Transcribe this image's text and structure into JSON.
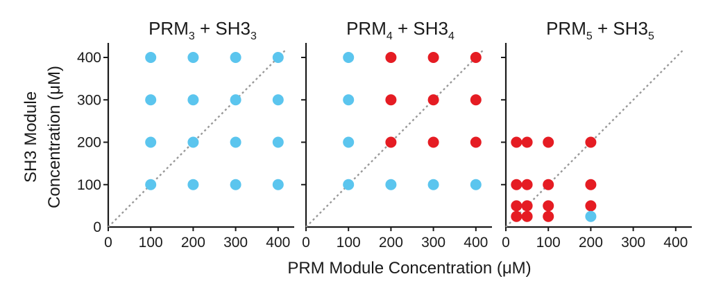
{
  "chart_data": {
    "type": "scatter",
    "ylabel": [
      "SH3 Module",
      "Concentration (μM)"
    ],
    "xlabel": "PRM Module Concentration (μM)",
    "xlim": [
      0,
      420
    ],
    "ylim": [
      0,
      420
    ],
    "x_ticks": [
      "0",
      "100",
      "200",
      "300",
      "400"
    ],
    "y_ticks": [
      "0",
      "100",
      "200",
      "300",
      "400"
    ],
    "colors": {
      "blue": "#5BC5EE",
      "red": "#E51C23",
      "diagonal": "#999999"
    },
    "panels": [
      {
        "title": {
          "prefix1": "PRM",
          "sub1": "3",
          "mid": " + SH3",
          "sub2": "3"
        },
        "points": [
          {
            "x": 100,
            "y": 400,
            "c": "blue"
          },
          {
            "x": 200,
            "y": 400,
            "c": "blue"
          },
          {
            "x": 300,
            "y": 400,
            "c": "blue"
          },
          {
            "x": 400,
            "y": 400,
            "c": "blue"
          },
          {
            "x": 100,
            "y": 300,
            "c": "blue"
          },
          {
            "x": 200,
            "y": 300,
            "c": "blue"
          },
          {
            "x": 300,
            "y": 300,
            "c": "blue"
          },
          {
            "x": 400,
            "y": 300,
            "c": "blue"
          },
          {
            "x": 100,
            "y": 200,
            "c": "blue"
          },
          {
            "x": 200,
            "y": 200,
            "c": "blue"
          },
          {
            "x": 300,
            "y": 200,
            "c": "blue"
          },
          {
            "x": 400,
            "y": 200,
            "c": "blue"
          },
          {
            "x": 100,
            "y": 100,
            "c": "blue"
          },
          {
            "x": 200,
            "y": 100,
            "c": "blue"
          },
          {
            "x": 300,
            "y": 100,
            "c": "blue"
          },
          {
            "x": 400,
            "y": 100,
            "c": "blue"
          }
        ]
      },
      {
        "title": {
          "prefix1": "PRM",
          "sub1": "4",
          "mid": " + SH3",
          "sub2": "4"
        },
        "points": [
          {
            "x": 100,
            "y": 400,
            "c": "blue"
          },
          {
            "x": 200,
            "y": 400,
            "c": "red"
          },
          {
            "x": 300,
            "y": 400,
            "c": "red"
          },
          {
            "x": 400,
            "y": 400,
            "c": "red"
          },
          {
            "x": 100,
            "y": 300,
            "c": "blue"
          },
          {
            "x": 200,
            "y": 300,
            "c": "red"
          },
          {
            "x": 300,
            "y": 300,
            "c": "red"
          },
          {
            "x": 400,
            "y": 300,
            "c": "red"
          },
          {
            "x": 100,
            "y": 200,
            "c": "blue"
          },
          {
            "x": 200,
            "y": 200,
            "c": "red"
          },
          {
            "x": 300,
            "y": 200,
            "c": "red"
          },
          {
            "x": 400,
            "y": 200,
            "c": "red"
          },
          {
            "x": 100,
            "y": 100,
            "c": "blue"
          },
          {
            "x": 200,
            "y": 100,
            "c": "blue"
          },
          {
            "x": 300,
            "y": 100,
            "c": "blue"
          },
          {
            "x": 400,
            "y": 100,
            "c": "blue"
          }
        ]
      },
      {
        "title": {
          "prefix1": "PRM",
          "sub1": "5",
          "mid": " + SH3",
          "sub2": "5"
        },
        "points": [
          {
            "x": 25,
            "y": 200,
            "c": "red"
          },
          {
            "x": 50,
            "y": 200,
            "c": "red"
          },
          {
            "x": 100,
            "y": 200,
            "c": "red"
          },
          {
            "x": 200,
            "y": 200,
            "c": "red"
          },
          {
            "x": 25,
            "y": 100,
            "c": "red"
          },
          {
            "x": 50,
            "y": 100,
            "c": "red"
          },
          {
            "x": 100,
            "y": 100,
            "c": "red"
          },
          {
            "x": 200,
            "y": 100,
            "c": "red"
          },
          {
            "x": 25,
            "y": 50,
            "c": "red"
          },
          {
            "x": 50,
            "y": 50,
            "c": "red"
          },
          {
            "x": 100,
            "y": 50,
            "c": "red"
          },
          {
            "x": 200,
            "y": 50,
            "c": "red"
          },
          {
            "x": 25,
            "y": 25,
            "c": "red"
          },
          {
            "x": 50,
            "y": 25,
            "c": "red"
          },
          {
            "x": 100,
            "y": 25,
            "c": "red"
          },
          {
            "x": 200,
            "y": 25,
            "c": "blue"
          }
        ]
      }
    ]
  }
}
